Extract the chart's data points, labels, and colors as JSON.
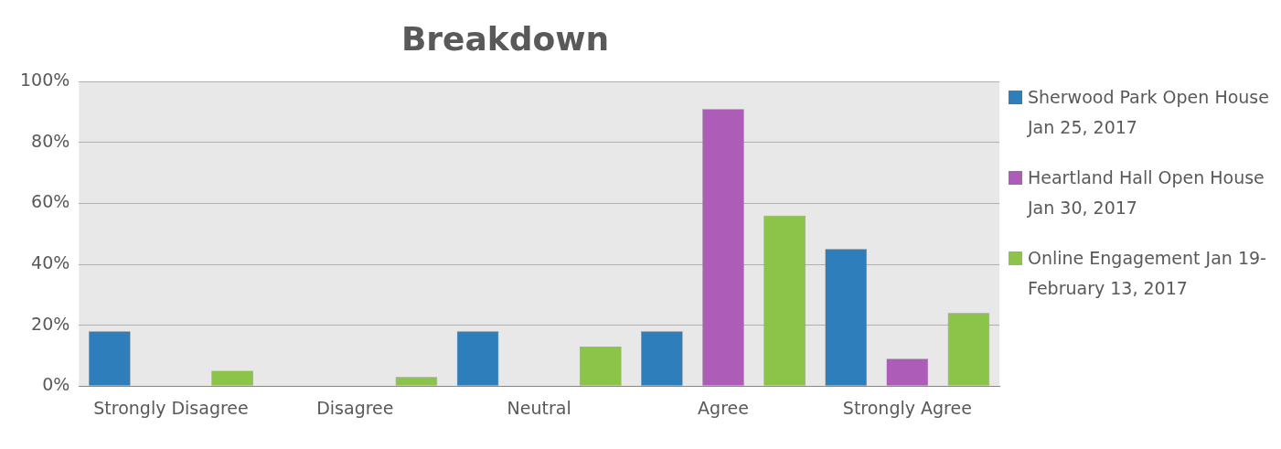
{
  "chart_data": {
    "type": "bar",
    "title": "Breakdown",
    "categories": [
      "Strongly Disagree",
      "Disagree",
      "Neutral",
      "Agree",
      "Strongly Agree"
    ],
    "series": [
      {
        "name": "Sherwood Park Open House Jan 25, 2017",
        "color": "#2e7ebc",
        "values": [
          18,
          0,
          18,
          18,
          45
        ]
      },
      {
        "name": "Heartland Hall Open House Jan 30, 2017",
        "color": "#ad5cb8",
        "values": [
          0,
          0,
          0,
          91,
          9
        ]
      },
      {
        "name": "Online Engagement Jan 19-February 13, 2017",
        "color": "#8cc44a",
        "values": [
          5,
          3,
          13,
          56,
          24
        ]
      }
    ],
    "ylim": [
      0,
      100
    ],
    "yticks": [
      {
        "value": 0,
        "label": "0%"
      },
      {
        "value": 20,
        "label": "20%"
      },
      {
        "value": 40,
        "label": "40%"
      },
      {
        "value": 60,
        "label": "60%"
      },
      {
        "value": 80,
        "label": "80%"
      },
      {
        "value": 100,
        "label": "100%"
      }
    ],
    "grid": "y",
    "legend": "right"
  }
}
